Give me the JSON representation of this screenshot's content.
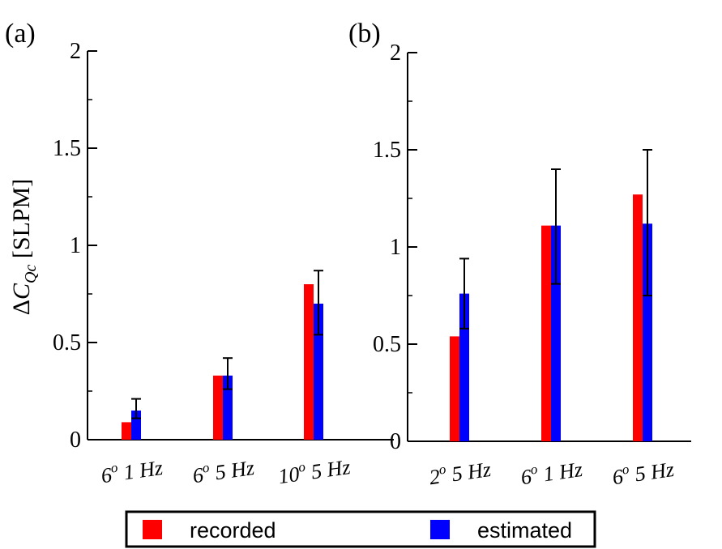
{
  "chart_data": [
    {
      "type": "bar",
      "panel_label": "(a)",
      "ylabel": "ΔC_Qc [SLPM]",
      "ylim": [
        0,
        2
      ],
      "yticks": [
        "0",
        "0.5",
        "1",
        "1.5",
        "2"
      ],
      "categories": [
        {
          "angle": "6",
          "sup": "o",
          "freq": " 1 Hz"
        },
        {
          "angle": "6",
          "sup": "o",
          "freq": " 5 Hz"
        },
        {
          "angle": "10",
          "sup": "o",
          "freq": " 5 Hz"
        }
      ],
      "series": [
        {
          "name": "recorded",
          "color": "#ff0000",
          "values": [
            0.09,
            0.33,
            0.8
          ]
        },
        {
          "name": "estimated",
          "color": "#0000ff",
          "values": [
            0.15,
            0.33,
            0.7
          ],
          "error_low": [
            0.11,
            0.26,
            0.54
          ],
          "error_high": [
            0.21,
            0.42,
            0.87
          ]
        }
      ]
    },
    {
      "type": "bar",
      "panel_label": "(b)",
      "ylim": [
        0,
        2
      ],
      "yticks": [
        "0",
        "0.5",
        "1",
        "1.5",
        "2"
      ],
      "categories": [
        {
          "angle": "2",
          "sup": "o",
          "freq": " 5 Hz"
        },
        {
          "angle": "6",
          "sup": "o",
          "freq": " 1 Hz"
        },
        {
          "angle": "6",
          "sup": "o",
          "freq": " 5 Hz"
        }
      ],
      "series": [
        {
          "name": "recorded",
          "color": "#ff0000",
          "values": [
            0.54,
            1.11,
            1.27
          ]
        },
        {
          "name": "estimated",
          "color": "#0000ff",
          "values": [
            0.76,
            1.11,
            1.12
          ],
          "error_low": [
            0.58,
            0.81,
            0.75
          ],
          "error_high": [
            0.94,
            1.4,
            1.5
          ]
        }
      ]
    }
  ],
  "legend": {
    "items": [
      {
        "label": "recorded",
        "color": "#ff0000"
      },
      {
        "label": "estimated",
        "color": "#0000ff"
      }
    ]
  }
}
